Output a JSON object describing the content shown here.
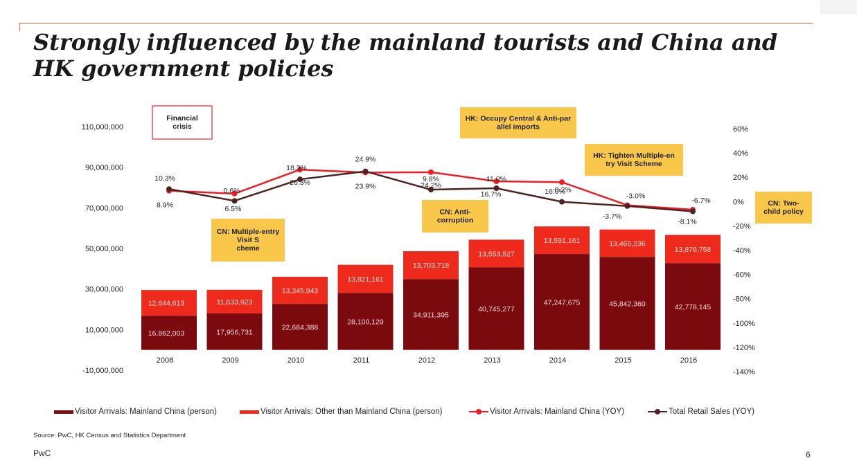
{
  "title": "Strongly influenced by the mainland tourists and China and HK government policies",
  "source": "Source:  PwC, HK Census and Statistics Department",
  "footer": {
    "brand": "PwC",
    "page": "6"
  },
  "colors": {
    "mainland_bar": "#7b0a0f",
    "other_bar": "#ee2a1c",
    "mainland_yoy": "#ee1c24",
    "retail_yoy": "#4f2323",
    "callout_fill": "#f9c84a",
    "callout_border": "#e0262c",
    "accent_rule": "#e06a3c"
  },
  "chart_data": {
    "type": "bar",
    "stacked": true,
    "categories": [
      "2008",
      "2009",
      "2010",
      "2011",
      "2012",
      "2013",
      "2014",
      "2015",
      "2016"
    ],
    "series": [
      {
        "name": "Visitor Arrivals: Mainland China (person)",
        "axis": "left",
        "values": [
          16862003,
          17956731,
          22684388,
          28100129,
          34911395,
          40745277,
          47247675,
          45842360,
          42778145
        ],
        "labels": [
          "16,862,003",
          "17,956,731",
          "22,684,388",
          "28,100,129",
          "34,911,395",
          "40,745,277",
          "47,247,675",
          "45,842,360",
          "42,778,145"
        ]
      },
      {
        "name": "Visitor Arrivals: Other than Mainland China (person)",
        "axis": "left",
        "values": [
          12644613,
          11633923,
          13345943,
          13821161,
          13703718,
          13553527,
          13591161,
          13465236,
          13876758
        ],
        "labels": [
          "12,644,613",
          "11,633,923",
          "13,345,943",
          "13,821,161",
          "13,703,718",
          "13,553,527",
          "13,591,161",
          "13,465,236",
          "13,876,758"
        ]
      }
    ],
    "line_series": [
      {
        "name": "Visitor Arrivals: Mainland China (YOY)",
        "axis": "right",
        "values": [
          8.9,
          6.5,
          26.3,
          23.9,
          24.2,
          16.7,
          16.0,
          -3.0,
          -6.7
        ],
        "labels": [
          "8.9%",
          "6.5%",
          "26.3%",
          "23.9%",
          "24.2%",
          "16.7%",
          "16.0%",
          "-3.0%",
          "-6.7%"
        ]
      },
      {
        "name": "Total Retail Sales (YOY)",
        "axis": "right",
        "values": [
          10.3,
          0.6,
          18.3,
          24.9,
          9.8,
          11.0,
          -0.2,
          -3.7,
          -8.1
        ],
        "labels": [
          "10.3%",
          "0.6%",
          "18.3%",
          "24.9%",
          "9.8%",
          "11.0%",
          "-0.2%",
          "-3.7%",
          "-8.1%"
        ]
      }
    ],
    "left_axis": {
      "ylim": [
        -10000000,
        110000000
      ],
      "ticks": [
        "110,000,000",
        "90,000,000",
        "70,000,000",
        "50,000,000",
        "30,000,000",
        "10,000,000",
        "-10,000,000"
      ]
    },
    "right_axis": {
      "ylim": [
        -140,
        60
      ],
      "ticks": [
        "60%",
        "40%",
        "20%",
        "0%",
        "-20%",
        "-40%",
        "-60%",
        "-80%",
        "-100%",
        "-120%",
        "-140%"
      ]
    },
    "annotations": [
      {
        "text": "Financial crisis",
        "style": "boxed"
      },
      {
        "text": "CN: Multiple-entry Visit Scheme",
        "style": "callout"
      },
      {
        "text": "HK: Occupy Central & Anti-parallel imports",
        "style": "callout"
      },
      {
        "text": "CN: Anti-corruption",
        "style": "callout"
      },
      {
        "text": "HK: Tighten Multiple-entry Visit Scheme",
        "style": "callout"
      },
      {
        "text": "CN: Two-child policy",
        "style": "callout"
      }
    ],
    "legend": [
      "Visitor Arrivals: Mainland China (person)",
      "Visitor Arrivals: Other than Mainland China (person)",
      "Visitor Arrivals: Mainland China (YOY)",
      "Total Retail Sales (YOY)"
    ],
    "legend_position": "bottom"
  }
}
